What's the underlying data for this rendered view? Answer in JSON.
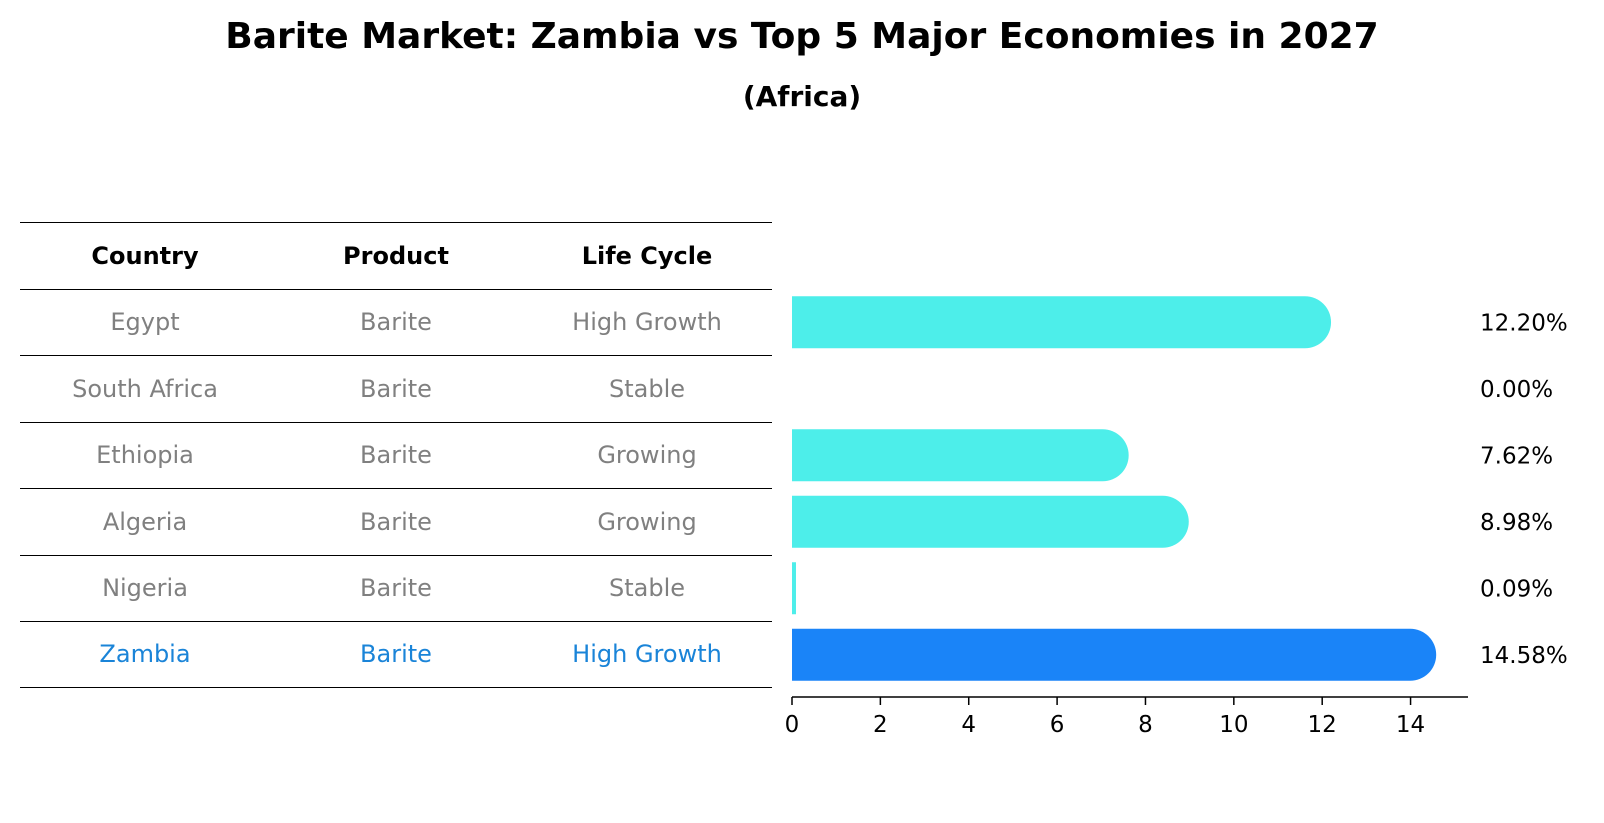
{
  "title": "Barite Market: Zambia vs Top 5 Major Economies in 2027",
  "subtitle": "(Africa)",
  "table": {
    "headers": [
      "Country",
      "Product",
      "Life Cycle"
    ],
    "rows": [
      {
        "country": "Egypt",
        "product": "Barite",
        "life_cycle": "High Growth"
      },
      {
        "country": "South Africa",
        "product": "Barite",
        "life_cycle": "Stable"
      },
      {
        "country": "Ethiopia",
        "product": "Barite",
        "life_cycle": "Growing"
      },
      {
        "country": "Algeria",
        "product": "Barite",
        "life_cycle": "Growing"
      },
      {
        "country": "Nigeria",
        "product": "Barite",
        "life_cycle": "Stable"
      },
      {
        "country": "Zambia",
        "product": "Barite",
        "life_cycle": "High Growth"
      }
    ],
    "highlight_row": 5
  },
  "chart_data": {
    "type": "bar",
    "orientation": "horizontal",
    "categories": [
      "Egypt",
      "South Africa",
      "Ethiopia",
      "Algeria",
      "Nigeria",
      "Zambia"
    ],
    "values": [
      12.2,
      0.0,
      7.62,
      8.98,
      0.09,
      14.58
    ],
    "value_labels": [
      "12.20%",
      "0.00%",
      "7.62%",
      "8.98%",
      "0.09%",
      "14.58%"
    ],
    "xlim": [
      0,
      15.3
    ],
    "xticks": [
      0,
      2,
      4,
      6,
      8,
      10,
      12,
      14
    ],
    "grid": false,
    "colors": {
      "default": "#4deeea",
      "highlight": "#1a84f8"
    },
    "highlight_index": 5
  }
}
